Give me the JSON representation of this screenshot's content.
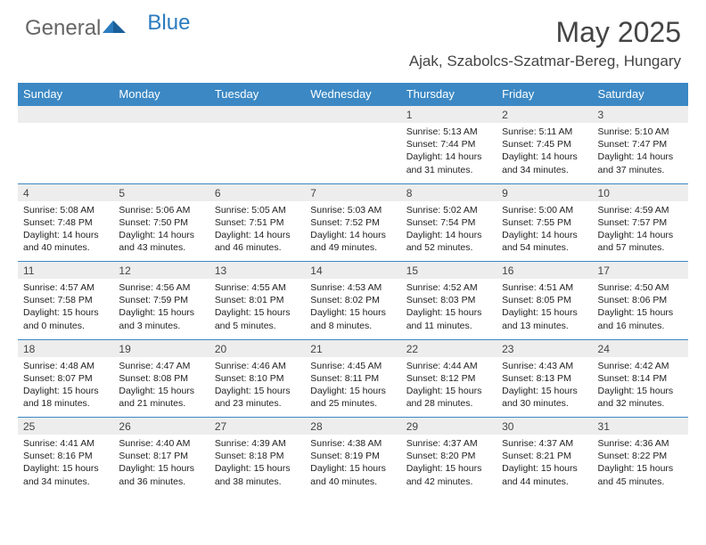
{
  "logo": {
    "part1": "General",
    "part2": "Blue"
  },
  "title": "May 2025",
  "location": "Ajak, Szabolcs-Szatmar-Bereg, Hungary",
  "weekdays": [
    "Sunday",
    "Monday",
    "Tuesday",
    "Wednesday",
    "Thursday",
    "Friday",
    "Saturday"
  ],
  "colors": {
    "header_bg": "#3b88c4",
    "daynum_bg": "#ededed",
    "row_border": "#3b88c4",
    "text": "#222222"
  },
  "weeks": [
    [
      null,
      null,
      null,
      null,
      {
        "n": "1",
        "sr": "5:13 AM",
        "ss": "7:44 PM",
        "dl": "14 hours and 31 minutes."
      },
      {
        "n": "2",
        "sr": "5:11 AM",
        "ss": "7:45 PM",
        "dl": "14 hours and 34 minutes."
      },
      {
        "n": "3",
        "sr": "5:10 AM",
        "ss": "7:47 PM",
        "dl": "14 hours and 37 minutes."
      }
    ],
    [
      {
        "n": "4",
        "sr": "5:08 AM",
        "ss": "7:48 PM",
        "dl": "14 hours and 40 minutes."
      },
      {
        "n": "5",
        "sr": "5:06 AM",
        "ss": "7:50 PM",
        "dl": "14 hours and 43 minutes."
      },
      {
        "n": "6",
        "sr": "5:05 AM",
        "ss": "7:51 PM",
        "dl": "14 hours and 46 minutes."
      },
      {
        "n": "7",
        "sr": "5:03 AM",
        "ss": "7:52 PM",
        "dl": "14 hours and 49 minutes."
      },
      {
        "n": "8",
        "sr": "5:02 AM",
        "ss": "7:54 PM",
        "dl": "14 hours and 52 minutes."
      },
      {
        "n": "9",
        "sr": "5:00 AM",
        "ss": "7:55 PM",
        "dl": "14 hours and 54 minutes."
      },
      {
        "n": "10",
        "sr": "4:59 AM",
        "ss": "7:57 PM",
        "dl": "14 hours and 57 minutes."
      }
    ],
    [
      {
        "n": "11",
        "sr": "4:57 AM",
        "ss": "7:58 PM",
        "dl": "15 hours and 0 minutes."
      },
      {
        "n": "12",
        "sr": "4:56 AM",
        "ss": "7:59 PM",
        "dl": "15 hours and 3 minutes."
      },
      {
        "n": "13",
        "sr": "4:55 AM",
        "ss": "8:01 PM",
        "dl": "15 hours and 5 minutes."
      },
      {
        "n": "14",
        "sr": "4:53 AM",
        "ss": "8:02 PM",
        "dl": "15 hours and 8 minutes."
      },
      {
        "n": "15",
        "sr": "4:52 AM",
        "ss": "8:03 PM",
        "dl": "15 hours and 11 minutes."
      },
      {
        "n": "16",
        "sr": "4:51 AM",
        "ss": "8:05 PM",
        "dl": "15 hours and 13 minutes."
      },
      {
        "n": "17",
        "sr": "4:50 AM",
        "ss": "8:06 PM",
        "dl": "15 hours and 16 minutes."
      }
    ],
    [
      {
        "n": "18",
        "sr": "4:48 AM",
        "ss": "8:07 PM",
        "dl": "15 hours and 18 minutes."
      },
      {
        "n": "19",
        "sr": "4:47 AM",
        "ss": "8:08 PM",
        "dl": "15 hours and 21 minutes."
      },
      {
        "n": "20",
        "sr": "4:46 AM",
        "ss": "8:10 PM",
        "dl": "15 hours and 23 minutes."
      },
      {
        "n": "21",
        "sr": "4:45 AM",
        "ss": "8:11 PM",
        "dl": "15 hours and 25 minutes."
      },
      {
        "n": "22",
        "sr": "4:44 AM",
        "ss": "8:12 PM",
        "dl": "15 hours and 28 minutes."
      },
      {
        "n": "23",
        "sr": "4:43 AM",
        "ss": "8:13 PM",
        "dl": "15 hours and 30 minutes."
      },
      {
        "n": "24",
        "sr": "4:42 AM",
        "ss": "8:14 PM",
        "dl": "15 hours and 32 minutes."
      }
    ],
    [
      {
        "n": "25",
        "sr": "4:41 AM",
        "ss": "8:16 PM",
        "dl": "15 hours and 34 minutes."
      },
      {
        "n": "26",
        "sr": "4:40 AM",
        "ss": "8:17 PM",
        "dl": "15 hours and 36 minutes."
      },
      {
        "n": "27",
        "sr": "4:39 AM",
        "ss": "8:18 PM",
        "dl": "15 hours and 38 minutes."
      },
      {
        "n": "28",
        "sr": "4:38 AM",
        "ss": "8:19 PM",
        "dl": "15 hours and 40 minutes."
      },
      {
        "n": "29",
        "sr": "4:37 AM",
        "ss": "8:20 PM",
        "dl": "15 hours and 42 minutes."
      },
      {
        "n": "30",
        "sr": "4:37 AM",
        "ss": "8:21 PM",
        "dl": "15 hours and 44 minutes."
      },
      {
        "n": "31",
        "sr": "4:36 AM",
        "ss": "8:22 PM",
        "dl": "15 hours and 45 minutes."
      }
    ]
  ],
  "labels": {
    "sunrise": "Sunrise:",
    "sunset": "Sunset:",
    "daylight": "Daylight:"
  }
}
